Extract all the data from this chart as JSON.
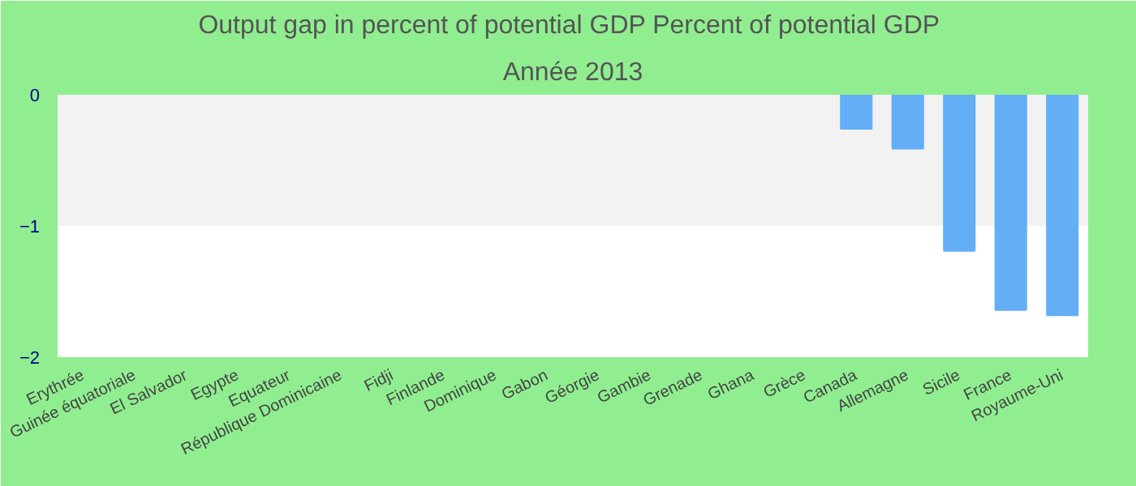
{
  "chart_data": {
    "type": "bar",
    "title": "Output gap in percent of potential GDP  Percent of potential GDP",
    "subtitle": "Année 2013",
    "categories": [
      "Erythrée",
      "Guinée équatoriale",
      "El Salvador",
      "Egypte",
      "Equateur",
      "République Dominicaine",
      "Fidji",
      "Finlande",
      "Dominique",
      "Gabon",
      "Géorgie",
      "Gambie",
      "Grenade",
      "Ghana",
      "Grèce",
      "Canada",
      "Allemagne",
      "Sicile",
      "France",
      "Royaume-Uni"
    ],
    "values": [
      null,
      null,
      null,
      null,
      null,
      null,
      null,
      null,
      null,
      null,
      null,
      null,
      null,
      null,
      null,
      -0.26,
      -0.41,
      -1.19,
      -1.64,
      -1.68
    ],
    "color": "#63aef5",
    "ylim": [
      -2,
      0
    ],
    "yticks": [
      -2,
      -1,
      0
    ],
    "bands": [
      {
        "axis": "y",
        "from": -1,
        "to": 0,
        "color": "#f2f2f2"
      }
    ]
  }
}
